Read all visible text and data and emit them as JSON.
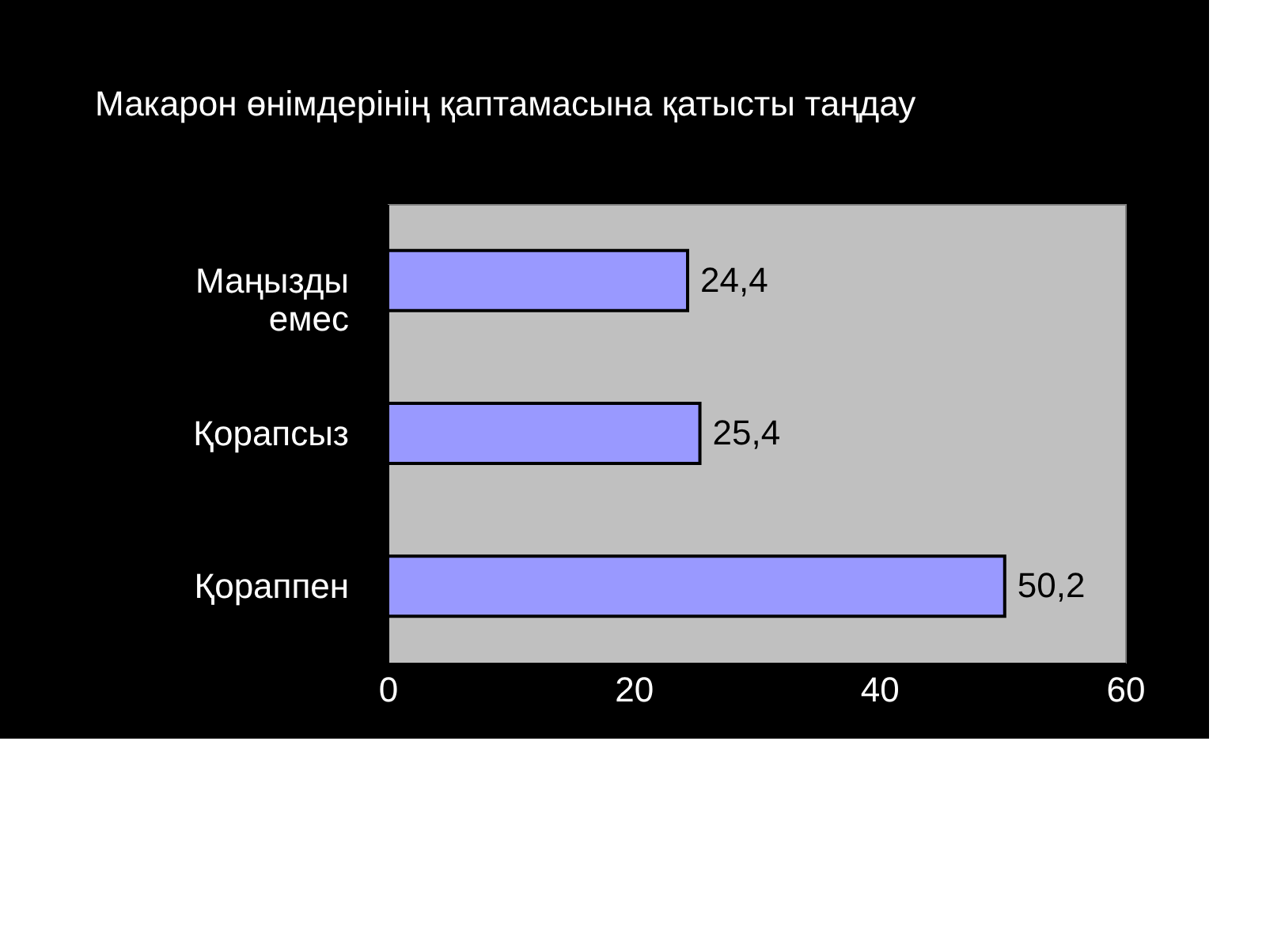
{
  "chart_data": {
    "type": "bar",
    "orientation": "horizontal",
    "title": "Макарон өнімдерінің қаптамасына қатысты таңдау",
    "categories": [
      "Маңызды емес",
      "Қорапсыз",
      "Қораппен"
    ],
    "values": [
      24.4,
      25.4,
      50.2
    ],
    "value_labels": [
      "24,4",
      "25,4",
      "50,2"
    ],
    "color": "#9999ff",
    "xlim": [
      0,
      60
    ],
    "xticks": [
      0,
      20,
      40,
      60
    ]
  }
}
